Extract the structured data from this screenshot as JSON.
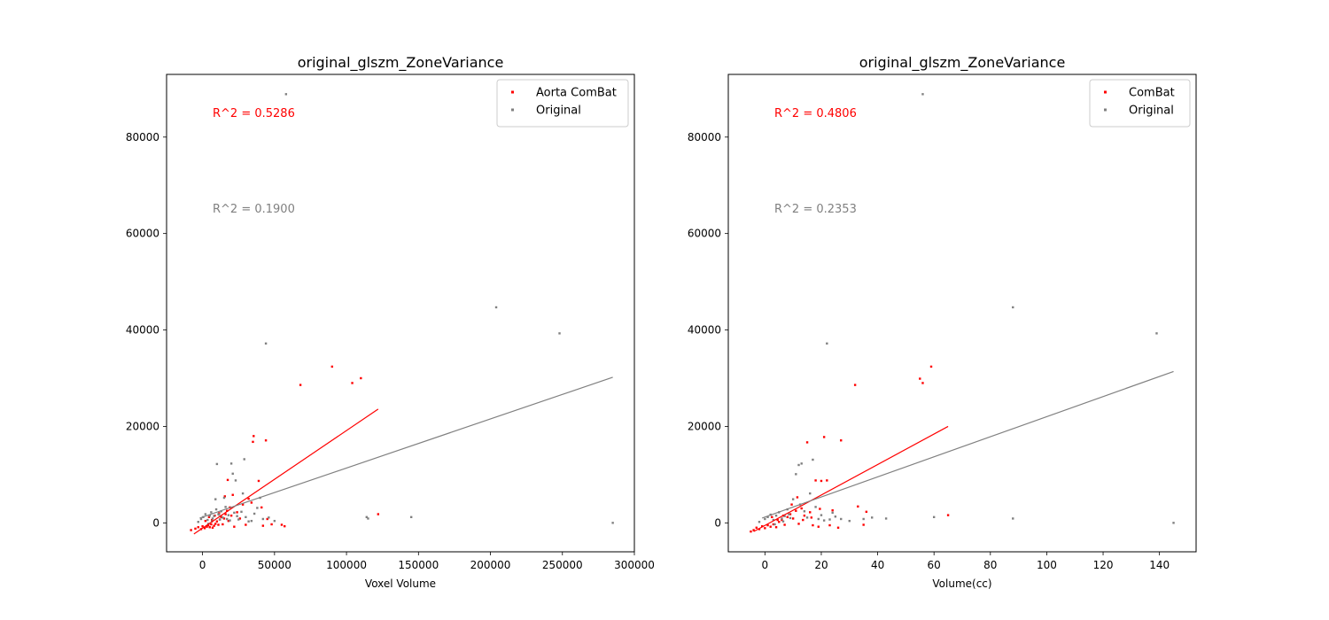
{
  "chart_data": [
    {
      "type": "scatter",
      "title": "original_glszm_ZoneVariance",
      "xlabel": "Voxel Volume",
      "ylabel": "",
      "xlim": [
        -25000,
        300000
      ],
      "ylim": [
        -6000,
        93000
      ],
      "xticks": [
        0,
        50000,
        100000,
        150000,
        200000,
        250000,
        300000
      ],
      "xtick_labels": [
        "0",
        "50000",
        "100000",
        "150000",
        "200000",
        "250000",
        "300000"
      ],
      "yticks": [
        0,
        20000,
        40000,
        60000,
        80000
      ],
      "ytick_labels": [
        "0",
        "20000",
        "40000",
        "60000",
        "80000"
      ],
      "legend_position": "top-right",
      "series": [
        {
          "name": "Aorta ComBat",
          "color": "#ff0000",
          "points": [
            [
              -8000,
              -1500
            ],
            [
              -5000,
              -1200
            ],
            [
              -3000,
              -900
            ],
            [
              -1000,
              -1300
            ],
            [
              0,
              -700
            ],
            [
              1500,
              -1100
            ],
            [
              3000,
              -800
            ],
            [
              4000,
              -500
            ],
            [
              5000,
              -900
            ],
            [
              6000,
              -300
            ],
            [
              7000,
              -1000
            ],
            [
              8000,
              -600
            ],
            [
              9000,
              -200
            ],
            [
              10000,
              300
            ],
            [
              11000,
              -400
            ],
            [
              12000,
              700
            ],
            [
              13000,
              1200
            ],
            [
              14000,
              -300
            ],
            [
              15000,
              900
            ],
            [
              16000,
              1800
            ],
            [
              17000,
              2500
            ],
            [
              18000,
              400
            ],
            [
              19000,
              3200
            ],
            [
              20000,
              1500
            ],
            [
              22000,
              -800
            ],
            [
              24000,
              2200
            ],
            [
              26000,
              900
            ],
            [
              28000,
              3800
            ],
            [
              30000,
              -400
            ],
            [
              32000,
              5000
            ],
            [
              34000,
              4200
            ],
            [
              35000,
              16800
            ],
            [
              35500,
              18000
            ],
            [
              39000,
              8700
            ],
            [
              41000,
              3200
            ],
            [
              42000,
              -600
            ],
            [
              44000,
              17100
            ],
            [
              45000,
              800
            ],
            [
              48000,
              -300
            ],
            [
              55000,
              -400
            ],
            [
              57000,
              -700
            ],
            [
              68000,
              28600
            ],
            [
              90000,
              32400
            ],
            [
              104000,
              29000
            ],
            [
              110000,
              30000
            ],
            [
              122000,
              1800
            ],
            [
              2000,
              400
            ],
            [
              4500,
              1200
            ],
            [
              6500,
              600
            ],
            [
              8500,
              1500
            ],
            [
              11500,
              2000
            ],
            [
              15500,
              5500
            ],
            [
              17500,
              8900
            ],
            [
              21000,
              5800
            ]
          ],
          "r2_label": "R^2 = 0.5286",
          "fit_line": [
            [
              -6000,
              -2300
            ],
            [
              122000,
              23600
            ]
          ]
        },
        {
          "name": "Original",
          "color": "#808080",
          "points": [
            [
              -3000,
              200
            ],
            [
              -1000,
              800
            ],
            [
              500,
              1200
            ],
            [
              2000,
              1800
            ],
            [
              3500,
              600
            ],
            [
              5000,
              1500
            ],
            [
              6000,
              2200
            ],
            [
              7000,
              900
            ],
            [
              8000,
              1400
            ],
            [
              9000,
              4900
            ],
            [
              10000,
              12200
            ],
            [
              11000,
              1800
            ],
            [
              12000,
              700
            ],
            [
              13000,
              2400
            ],
            [
              14000,
              1100
            ],
            [
              15000,
              5200
            ],
            [
              16000,
              3300
            ],
            [
              17000,
              800
            ],
            [
              18000,
              1600
            ],
            [
              19000,
              500
            ],
            [
              20000,
              12300
            ],
            [
              21000,
              10200
            ],
            [
              22000,
              2100
            ],
            [
              23000,
              8800
            ],
            [
              24000,
              1400
            ],
            [
              25000,
              700
            ],
            [
              27000,
              2300
            ],
            [
              28000,
              6100
            ],
            [
              29000,
              13200
            ],
            [
              30000,
              1200
            ],
            [
              32000,
              300
            ],
            [
              34000,
              400
            ],
            [
              36000,
              1900
            ],
            [
              38000,
              3100
            ],
            [
              40000,
              5200
            ],
            [
              42000,
              800
            ],
            [
              44000,
              37200
            ],
            [
              46000,
              1100
            ],
            [
              50000,
              400
            ],
            [
              58000,
              88900
            ],
            [
              114000,
              1200
            ],
            [
              115000,
              900
            ],
            [
              145000,
              1200
            ],
            [
              204000,
              44700
            ],
            [
              248000,
              39300
            ],
            [
              285000,
              0
            ],
            [
              4000,
              -200
            ],
            [
              6500,
              300
            ],
            [
              9500,
              2800
            ],
            [
              11500,
              1700
            ]
          ],
          "r2_label": "R^2 = 0.1900",
          "fit_line": [
            [
              -2000,
              1000
            ],
            [
              285000,
              30200
            ]
          ]
        }
      ]
    },
    {
      "type": "scatter",
      "title": "original_glszm_ZoneVariance",
      "xlabel": "Volume(cc)",
      "ylabel": "",
      "xlim": [
        -13,
        153
      ],
      "ylim": [
        -6000,
        93000
      ],
      "xticks": [
        0,
        20,
        40,
        60,
        80,
        100,
        120,
        140
      ],
      "xtick_labels": [
        "0",
        "20",
        "40",
        "60",
        "80",
        "100",
        "120",
        "140"
      ],
      "yticks": [
        0,
        20000,
        40000,
        60000,
        80000
      ],
      "ytick_labels": [
        "0",
        "20000",
        "40000",
        "60000",
        "80000"
      ],
      "legend_position": "top-right",
      "series": [
        {
          "name": "ComBat",
          "color": "#ff0000",
          "points": [
            [
              -5,
              -1800
            ],
            [
              -4,
              -1500
            ],
            [
              -3,
              -1000
            ],
            [
              -2,
              -1300
            ],
            [
              -1,
              -700
            ],
            [
              0,
              -1100
            ],
            [
              1,
              -500
            ],
            [
              2,
              -800
            ],
            [
              3,
              -300
            ],
            [
              4,
              -900
            ],
            [
              5,
              200
            ],
            [
              6,
              600
            ],
            [
              7,
              -400
            ],
            [
              8,
              1200
            ],
            [
              9,
              1800
            ],
            [
              10,
              900
            ],
            [
              11,
              2500
            ],
            [
              12,
              -200
            ],
            [
              13,
              3000
            ],
            [
              14,
              1500
            ],
            [
              15,
              16700
            ],
            [
              16,
              2200
            ],
            [
              17,
              -500
            ],
            [
              18,
              8800
            ],
            [
              19,
              -800
            ],
            [
              20,
              8700
            ],
            [
              21,
              17800
            ],
            [
              22,
              8800
            ],
            [
              23,
              -500
            ],
            [
              24,
              2600
            ],
            [
              26,
              -1000
            ],
            [
              27,
              17100
            ],
            [
              32,
              28600
            ],
            [
              33,
              3400
            ],
            [
              35,
              -400
            ],
            [
              36,
              2300
            ],
            [
              55,
              29900
            ],
            [
              56,
              29000
            ],
            [
              59,
              32400
            ],
            [
              65,
              1600
            ],
            [
              2.5,
              1200
            ],
            [
              4.5,
              600
            ],
            [
              6.5,
              1500
            ],
            [
              9.5,
              3800
            ],
            [
              11.5,
              5300
            ],
            [
              13.5,
              600
            ],
            [
              16.5,
              1100
            ],
            [
              19.5,
              2900
            ]
          ],
          "r2_label": "R^2 = 0.4806",
          "fit_line": [
            [
              -4,
              -1800
            ],
            [
              65,
              20000
            ]
          ]
        },
        {
          "name": "Original",
          "color": "#808080",
          "points": [
            [
              -2,
              200
            ],
            [
              0,
              800
            ],
            [
              1,
              1200
            ],
            [
              2,
              1700
            ],
            [
              3,
              600
            ],
            [
              4,
              1500
            ],
            [
              5,
              2200
            ],
            [
              6,
              900
            ],
            [
              7,
              1400
            ],
            [
              8,
              2800
            ],
            [
              9,
              1000
            ],
            [
              10,
              4900
            ],
            [
              11,
              10100
            ],
            [
              12,
              12000
            ],
            [
              13,
              12300
            ],
            [
              14,
              2400
            ],
            [
              15,
              1100
            ],
            [
              16,
              6100
            ],
            [
              17,
              13100
            ],
            [
              18,
              3300
            ],
            [
              19,
              800
            ],
            [
              20,
              1600
            ],
            [
              21,
              500
            ],
            [
              22,
              37200
            ],
            [
              23,
              700
            ],
            [
              24,
              2100
            ],
            [
              25,
              1300
            ],
            [
              27,
              800
            ],
            [
              30,
              400
            ],
            [
              35,
              800
            ],
            [
              38,
              1100
            ],
            [
              43,
              900
            ],
            [
              56,
              88900
            ],
            [
              60,
              1200
            ],
            [
              88,
              44700
            ],
            [
              88,
              900
            ],
            [
              139,
              39300
            ],
            [
              145,
              0
            ],
            [
              3.5,
              -300
            ],
            [
              6.5,
              300
            ],
            [
              8.5,
              1800
            ],
            [
              12.5,
              3800
            ]
          ],
          "r2_label": "R^2 = 0.2353",
          "fit_line": [
            [
              -1,
              1000
            ],
            [
              145,
              31400
            ]
          ]
        }
      ]
    }
  ]
}
